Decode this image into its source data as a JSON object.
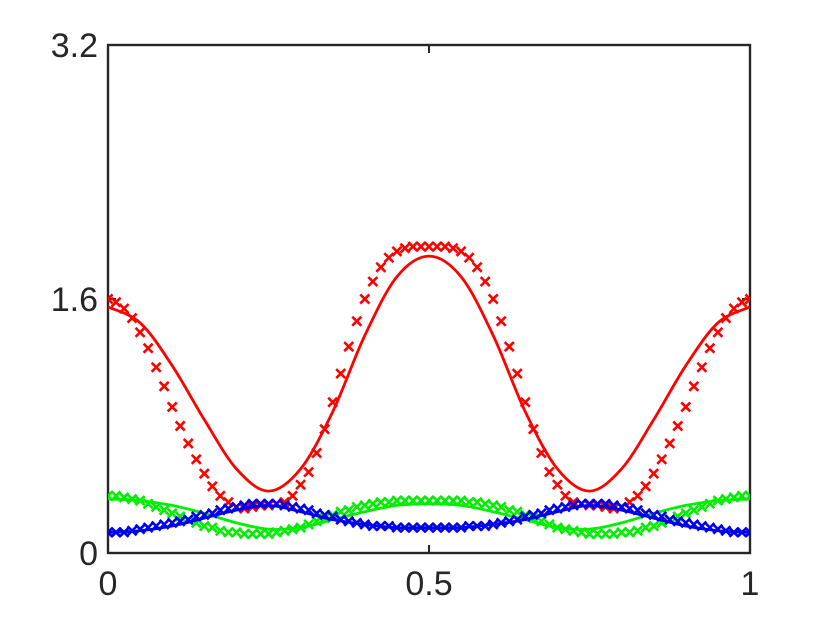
{
  "chart_data": {
    "type": "line",
    "title": "",
    "xlabel": "",
    "ylabel": "",
    "xlim": [
      0,
      1
    ],
    "ylim": [
      0,
      3.2
    ],
    "xticks": [
      0,
      0.5,
      1
    ],
    "xtick_labels": [
      "0",
      "0.5",
      "1"
    ],
    "yticks": [
      0,
      1.6,
      3.2
    ],
    "ytick_labels": [
      "0",
      "1.6",
      "3.2"
    ],
    "grid": false,
    "legend": "none",
    "series": [
      {
        "color": "#ff0000",
        "line_style": "solid",
        "marker": "none",
        "x": [
          0,
          0.05,
          0.1,
          0.15,
          0.2,
          0.25,
          0.3,
          0.35,
          0.4,
          0.45,
          0.5,
          0.55,
          0.6,
          0.65,
          0.7,
          0.75,
          0.8,
          0.85,
          0.9,
          0.95,
          1
        ],
        "y": [
          1.55,
          1.45,
          1.18,
          0.84,
          0.53,
          0.39,
          0.53,
          0.89,
          1.37,
          1.74,
          1.87,
          1.74,
          1.37,
          0.89,
          0.53,
          0.39,
          0.53,
          0.84,
          1.18,
          1.45,
          1.55
        ]
      },
      {
        "color": "#ff0000",
        "line_style": "none",
        "marker": "x",
        "x": [
          0,
          0.0125,
          0.025,
          0.0375,
          0.05,
          0.0625,
          0.075,
          0.0875,
          0.1,
          0.1125,
          0.125,
          0.1375,
          0.15,
          0.1625,
          0.175,
          0.1875,
          0.2,
          0.2125,
          0.225,
          0.2375,
          0.25,
          0.2625,
          0.275,
          0.2875,
          0.3,
          0.3125,
          0.325,
          0.3375,
          0.35,
          0.3625,
          0.375,
          0.3875,
          0.4,
          0.4125,
          0.425,
          0.4375,
          0.45,
          0.4625,
          0.475,
          0.4875,
          0.5,
          0.5125,
          0.525,
          0.5375,
          0.55,
          0.5625,
          0.575,
          0.5875,
          0.6,
          0.6125,
          0.625,
          0.6375,
          0.65,
          0.6625,
          0.675,
          0.6875,
          0.7,
          0.7125,
          0.725,
          0.7375,
          0.75,
          0.7625,
          0.775,
          0.7875,
          0.8,
          0.8125,
          0.825,
          0.8375,
          0.85,
          0.8625,
          0.875,
          0.8875,
          0.9,
          0.9125,
          0.925,
          0.9375,
          0.95,
          0.9625,
          0.975,
          0.9875,
          1
        ],
        "y": [
          1.6,
          1.58,
          1.54,
          1.48,
          1.39,
          1.29,
          1.17,
          1.05,
          0.92,
          0.8,
          0.69,
          0.59,
          0.5,
          0.42,
          0.36,
          0.32,
          0.29,
          0.28,
          0.29,
          0.3,
          0.3,
          0.31,
          0.32,
          0.36,
          0.43,
          0.51,
          0.63,
          0.78,
          0.95,
          1.13,
          1.3,
          1.46,
          1.6,
          1.71,
          1.8,
          1.86,
          1.9,
          1.92,
          1.93,
          1.93,
          1.93,
          1.93,
          1.93,
          1.92,
          1.9,
          1.86,
          1.8,
          1.71,
          1.6,
          1.46,
          1.3,
          1.13,
          0.95,
          0.78,
          0.63,
          0.51,
          0.43,
          0.36,
          0.32,
          0.31,
          0.3,
          0.3,
          0.29,
          0.28,
          0.29,
          0.32,
          0.36,
          0.42,
          0.5,
          0.59,
          0.69,
          0.8,
          0.92,
          1.05,
          1.17,
          1.29,
          1.39,
          1.48,
          1.54,
          1.58,
          1.6
        ]
      },
      {
        "color": "#00ee00",
        "line_style": "solid",
        "marker": "none",
        "x": [
          0,
          0.05,
          0.1,
          0.15,
          0.2,
          0.25,
          0.3,
          0.35,
          0.4,
          0.45,
          0.5,
          0.55,
          0.6,
          0.65,
          0.7,
          0.75,
          0.8,
          0.85,
          0.9,
          0.95,
          1
        ],
        "y": [
          0.34,
          0.33,
          0.3,
          0.25,
          0.19,
          0.15,
          0.16,
          0.21,
          0.26,
          0.3,
          0.31,
          0.3,
          0.26,
          0.21,
          0.16,
          0.15,
          0.19,
          0.25,
          0.3,
          0.33,
          0.34
        ]
      },
      {
        "color": "#00ee00",
        "line_style": "none",
        "marker": "x",
        "x": [
          0,
          0.0125,
          0.025,
          0.0375,
          0.05,
          0.0625,
          0.075,
          0.0875,
          0.1,
          0.1125,
          0.125,
          0.1375,
          0.15,
          0.1625,
          0.175,
          0.1875,
          0.2,
          0.2125,
          0.225,
          0.2375,
          0.25,
          0.2625,
          0.275,
          0.2875,
          0.3,
          0.3125,
          0.325,
          0.3375,
          0.35,
          0.3625,
          0.375,
          0.3875,
          0.4,
          0.4125,
          0.425,
          0.4375,
          0.45,
          0.4625,
          0.475,
          0.4875,
          0.5,
          0.5125,
          0.525,
          0.5375,
          0.55,
          0.5625,
          0.575,
          0.5875,
          0.6,
          0.6125,
          0.625,
          0.6375,
          0.65,
          0.6625,
          0.675,
          0.6875,
          0.7,
          0.7125,
          0.725,
          0.7375,
          0.75,
          0.7625,
          0.775,
          0.7875,
          0.8,
          0.8125,
          0.825,
          0.8375,
          0.85,
          0.8625,
          0.875,
          0.8875,
          0.9,
          0.9125,
          0.925,
          0.9375,
          0.95,
          0.9625,
          0.975,
          0.9875,
          1
        ],
        "y": [
          0.36,
          0.36,
          0.35,
          0.34,
          0.33,
          0.31,
          0.29,
          0.27,
          0.25,
          0.23,
          0.21,
          0.19,
          0.17,
          0.16,
          0.14,
          0.13,
          0.13,
          0.12,
          0.12,
          0.12,
          0.12,
          0.13,
          0.14,
          0.15,
          0.16,
          0.18,
          0.2,
          0.22,
          0.24,
          0.26,
          0.27,
          0.29,
          0.3,
          0.31,
          0.32,
          0.32,
          0.33,
          0.33,
          0.33,
          0.33,
          0.33,
          0.33,
          0.33,
          0.33,
          0.33,
          0.32,
          0.32,
          0.31,
          0.3,
          0.29,
          0.27,
          0.26,
          0.24,
          0.22,
          0.2,
          0.18,
          0.16,
          0.15,
          0.14,
          0.13,
          0.12,
          0.12,
          0.12,
          0.12,
          0.13,
          0.13,
          0.14,
          0.16,
          0.17,
          0.19,
          0.21,
          0.23,
          0.25,
          0.27,
          0.29,
          0.31,
          0.33,
          0.34,
          0.35,
          0.36,
          0.36
        ]
      },
      {
        "color": "#0000ee",
        "line_style": "solid",
        "marker": "none",
        "x": [
          0,
          0.05,
          0.1,
          0.15,
          0.2,
          0.25,
          0.3,
          0.35,
          0.4,
          0.45,
          0.5,
          0.55,
          0.6,
          0.65,
          0.7,
          0.75,
          0.8,
          0.85,
          0.9,
          0.95,
          1
        ],
        "y": [
          0.13,
          0.14,
          0.17,
          0.22,
          0.27,
          0.3,
          0.26,
          0.21,
          0.18,
          0.16,
          0.16,
          0.16,
          0.18,
          0.21,
          0.26,
          0.3,
          0.27,
          0.22,
          0.17,
          0.14,
          0.13
        ]
      },
      {
        "color": "#0000ee",
        "line_style": "none",
        "marker": "x",
        "x": [
          0,
          0.0125,
          0.025,
          0.0375,
          0.05,
          0.0625,
          0.075,
          0.0875,
          0.1,
          0.1125,
          0.125,
          0.1375,
          0.15,
          0.1625,
          0.175,
          0.1875,
          0.2,
          0.2125,
          0.225,
          0.2375,
          0.25,
          0.2625,
          0.275,
          0.2875,
          0.3,
          0.3125,
          0.325,
          0.3375,
          0.35,
          0.3625,
          0.375,
          0.3875,
          0.4,
          0.4125,
          0.425,
          0.4375,
          0.45,
          0.4625,
          0.475,
          0.4875,
          0.5,
          0.5125,
          0.525,
          0.5375,
          0.55,
          0.5625,
          0.575,
          0.5875,
          0.6,
          0.6125,
          0.625,
          0.6375,
          0.65,
          0.6625,
          0.675,
          0.6875,
          0.7,
          0.7125,
          0.725,
          0.7375,
          0.75,
          0.7625,
          0.775,
          0.7875,
          0.8,
          0.8125,
          0.825,
          0.8375,
          0.85,
          0.8625,
          0.875,
          0.8875,
          0.9,
          0.9125,
          0.925,
          0.9375,
          0.95,
          0.9625,
          0.975,
          0.9875,
          1
        ],
        "y": [
          0.13,
          0.13,
          0.13,
          0.14,
          0.15,
          0.16,
          0.17,
          0.18,
          0.19,
          0.2,
          0.21,
          0.23,
          0.24,
          0.25,
          0.27,
          0.28,
          0.29,
          0.3,
          0.31,
          0.31,
          0.31,
          0.31,
          0.3,
          0.29,
          0.28,
          0.27,
          0.25,
          0.24,
          0.23,
          0.21,
          0.2,
          0.19,
          0.18,
          0.17,
          0.17,
          0.17,
          0.16,
          0.16,
          0.16,
          0.16,
          0.16,
          0.16,
          0.16,
          0.16,
          0.16,
          0.17,
          0.17,
          0.17,
          0.18,
          0.19,
          0.2,
          0.21,
          0.23,
          0.24,
          0.25,
          0.27,
          0.28,
          0.29,
          0.3,
          0.31,
          0.31,
          0.31,
          0.31,
          0.3,
          0.29,
          0.28,
          0.27,
          0.25,
          0.24,
          0.23,
          0.21,
          0.2,
          0.19,
          0.18,
          0.17,
          0.16,
          0.15,
          0.14,
          0.13,
          0.13,
          0.13
        ]
      }
    ]
  }
}
